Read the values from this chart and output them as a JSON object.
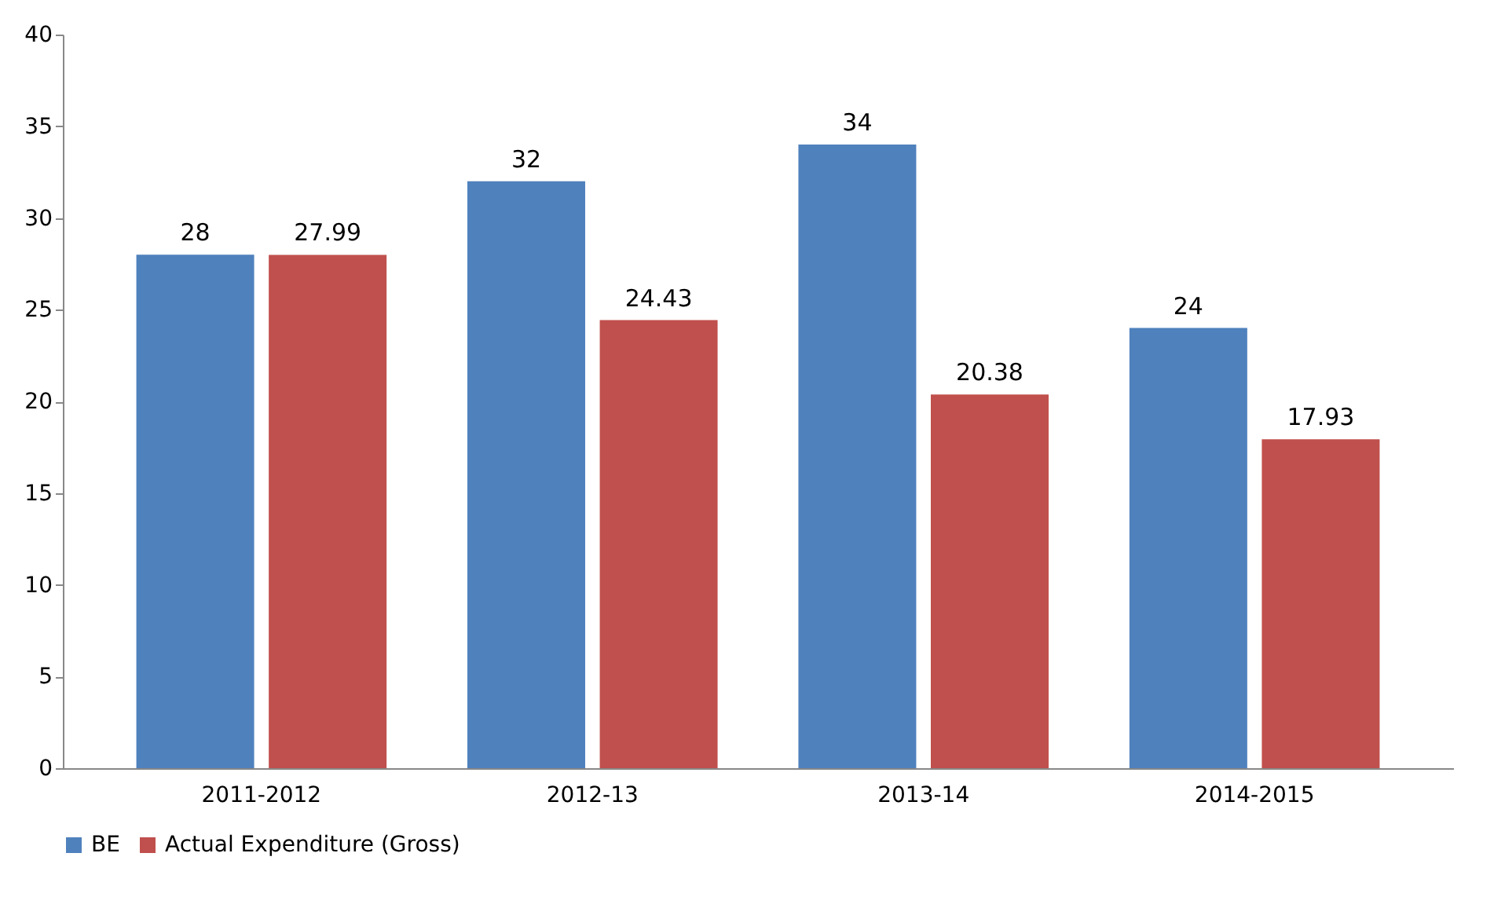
{
  "chart_data": {
    "type": "bar",
    "categories": [
      "2011-2012",
      "2012-13",
      "2013-14",
      "2014-2015"
    ],
    "series": [
      {
        "name": "BE",
        "color": "#4f81bd",
        "values": [
          28,
          32,
          34,
          24
        ]
      },
      {
        "name": "Actual Expenditure (Gross)",
        "color": "#c0504d",
        "values": [
          27.99,
          24.43,
          20.38,
          17.93
        ]
      }
    ],
    "ylim": [
      0,
      40
    ],
    "yticks": [
      0,
      5,
      10,
      15,
      20,
      25,
      30,
      35,
      40
    ],
    "grid": false,
    "legend": "bottom",
    "data_labels": true
  }
}
